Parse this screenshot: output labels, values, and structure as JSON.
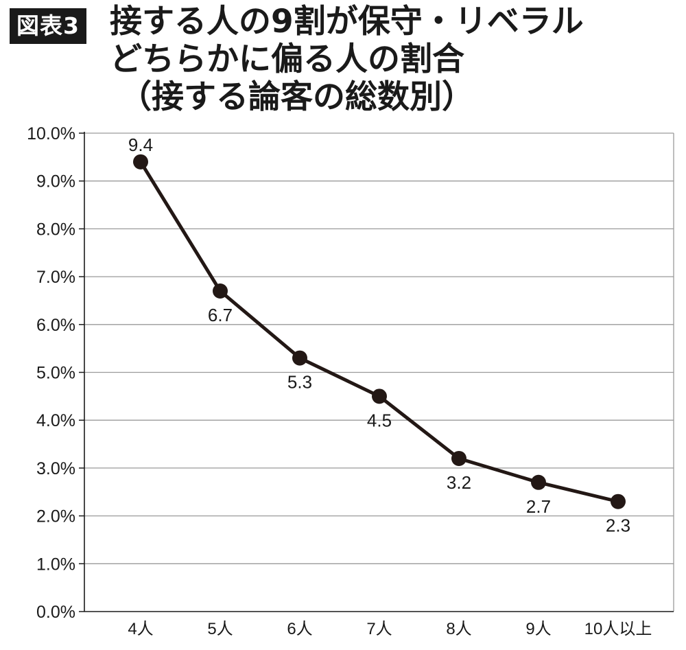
{
  "header": {
    "badge": "図表3",
    "title_lines": [
      "接する人の9割が保守・リベラル",
      "どちらかに偏る人の割合",
      "（接する論客の総数別）"
    ]
  },
  "chart_data": {
    "type": "line",
    "title": "接する人の9割が保守・リベラル どちらかに偏る人の割合（接する論客の総数別）",
    "categories": [
      "4人",
      "5人",
      "6人",
      "7人",
      "8人",
      "9人",
      "10人以上"
    ],
    "values": [
      9.4,
      6.7,
      5.3,
      4.5,
      3.2,
      2.7,
      2.3
    ],
    "data_labels": [
      "9.4",
      "6.7",
      "5.3",
      "4.5",
      "3.2",
      "2.7",
      "2.3"
    ],
    "y_ticks": [
      "0.0%",
      "1.0%",
      "2.0%",
      "3.0%",
      "4.0%",
      "5.0%",
      "6.0%",
      "7.0%",
      "8.0%",
      "9.0%",
      "10.0%"
    ],
    "ylim": [
      0,
      10
    ],
    "grid": true,
    "legend": "none",
    "line_color": "#231815",
    "grid_color": "#9a9a9a"
  }
}
